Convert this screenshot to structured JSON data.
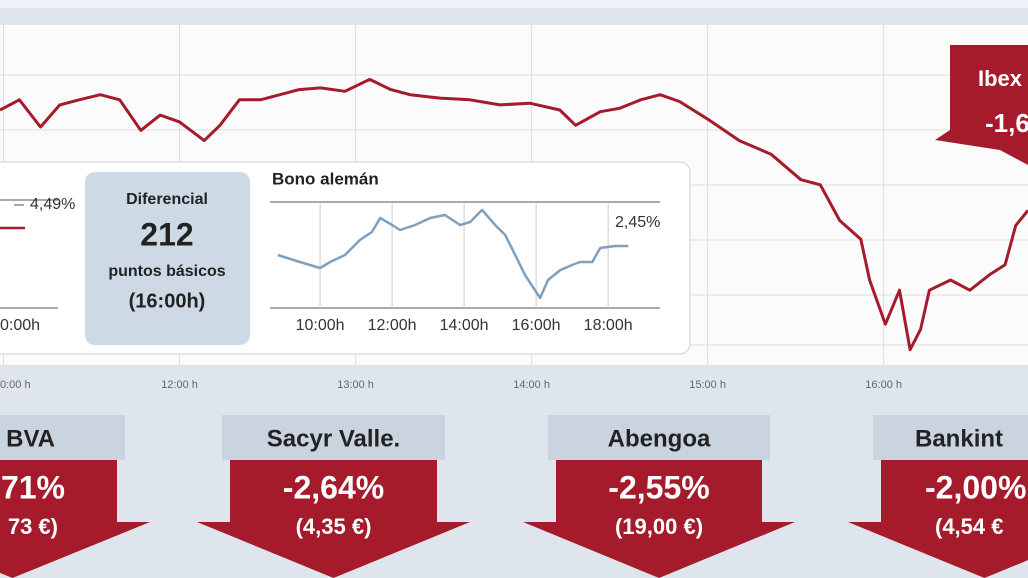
{
  "chart_data": [
    {
      "type": "line",
      "color": "#a51b2b",
      "x": [
        10.98,
        11.09,
        11.21,
        11.32,
        11.43,
        11.55,
        11.66,
        11.78,
        11.89,
        12.0,
        12.14,
        12.23,
        12.34,
        12.46,
        12.57,
        12.68,
        12.8,
        12.94,
        13.08,
        13.2,
        13.31,
        13.48,
        13.65,
        13.82,
        13.99,
        14.16,
        14.25,
        14.39,
        14.5,
        14.62,
        14.73,
        14.84,
        15.01,
        15.18,
        15.36,
        15.53,
        15.64,
        15.75,
        15.87,
        15.92,
        16.01,
        16.09,
        16.15,
        16.21,
        16.26,
        16.38,
        16.49,
        16.6,
        16.69,
        16.75,
        16.82
      ],
      "values": [
        75,
        78,
        70,
        76.5,
        78,
        79.5,
        78,
        69,
        73.5,
        71.5,
        66,
        70.5,
        78,
        78,
        79.5,
        81,
        81.5,
        80.5,
        84,
        81,
        79.5,
        78.5,
        78,
        76.5,
        77,
        75,
        70.5,
        74.5,
        75.5,
        78,
        79.5,
        77.5,
        72,
        66,
        62,
        54.5,
        53,
        42.5,
        37,
        25,
        12,
        22,
        4.5,
        10.5,
        22,
        25,
        22,
        26.5,
        29.5,
        41,
        45.5
      ],
      "xlim": [
        10.98,
        16.82
      ],
      "ylim": [
        0,
        100
      ],
      "xticks": [
        {
          "value": 11,
          "label": "0:00 h"
        },
        {
          "value": 12,
          "label": "12:00 h"
        },
        {
          "value": 13,
          "label": "13:00 h"
        },
        {
          "value": 14,
          "label": "14:00 h"
        },
        {
          "value": 15,
          "label": "15:00 h"
        },
        {
          "value": 16,
          "label": "16:00 h"
        }
      ],
      "annotation": {
        "title": "Ibex",
        "change": "-1,6"
      }
    },
    {
      "type": "line",
      "title": "Bono alemán",
      "color": "#7f9fbd",
      "end_label": "2,45%",
      "x": [
        8.83,
        9.44,
        10,
        10.28,
        10.69,
        11.11,
        11.44,
        11.67,
        12,
        12.22,
        12.64,
        13.06,
        13.47,
        13.89,
        14.17,
        14.5,
        14.86,
        15.14,
        15.42,
        15.69,
        16.11,
        16.33,
        16.67,
        17,
        17.22,
        17.56,
        17.78,
        18.19,
        18.56
      ],
      "values": [
        50,
        43.4,
        37.7,
        43.4,
        50,
        64.2,
        71.7,
        84.9,
        78.3,
        73.6,
        78.3,
        84.9,
        87.7,
        78.3,
        81.1,
        92.5,
        78.3,
        68.9,
        50,
        31.1,
        9.4,
        26.4,
        35.8,
        40.6,
        43.4,
        43.4,
        56.6,
        58.5,
        58.5
      ],
      "xlim": [
        8.61,
        19.44
      ],
      "ylim": [
        0,
        100
      ],
      "xticks": [
        {
          "value": 10,
          "label": "10:00h"
        },
        {
          "value": 12,
          "label": "12:00h"
        },
        {
          "value": 14,
          "label": "14:00h"
        },
        {
          "value": 16,
          "label": "16:00h"
        },
        {
          "value": 18,
          "label": "18:00h"
        }
      ]
    }
  ],
  "left_bond": {
    "end_label": "4,49%",
    "tick": "0:00h"
  },
  "spread": {
    "title": "Diferencial",
    "value": "212",
    "unit": "puntos básicos",
    "time": "(16:00h)"
  },
  "stocks": [
    {
      "name": "BVA",
      "change": "71%",
      "price": "73 €)"
    },
    {
      "name": "Sacyr Valle.",
      "change": "-2,64%",
      "price": "(4,35 €)"
    },
    {
      "name": "Abengoa",
      "change": "-2,55%",
      "price": "(19,00 €)"
    },
    {
      "name": "Bankint",
      "change": "-2,00%",
      "price": "(4,54 €"
    }
  ]
}
